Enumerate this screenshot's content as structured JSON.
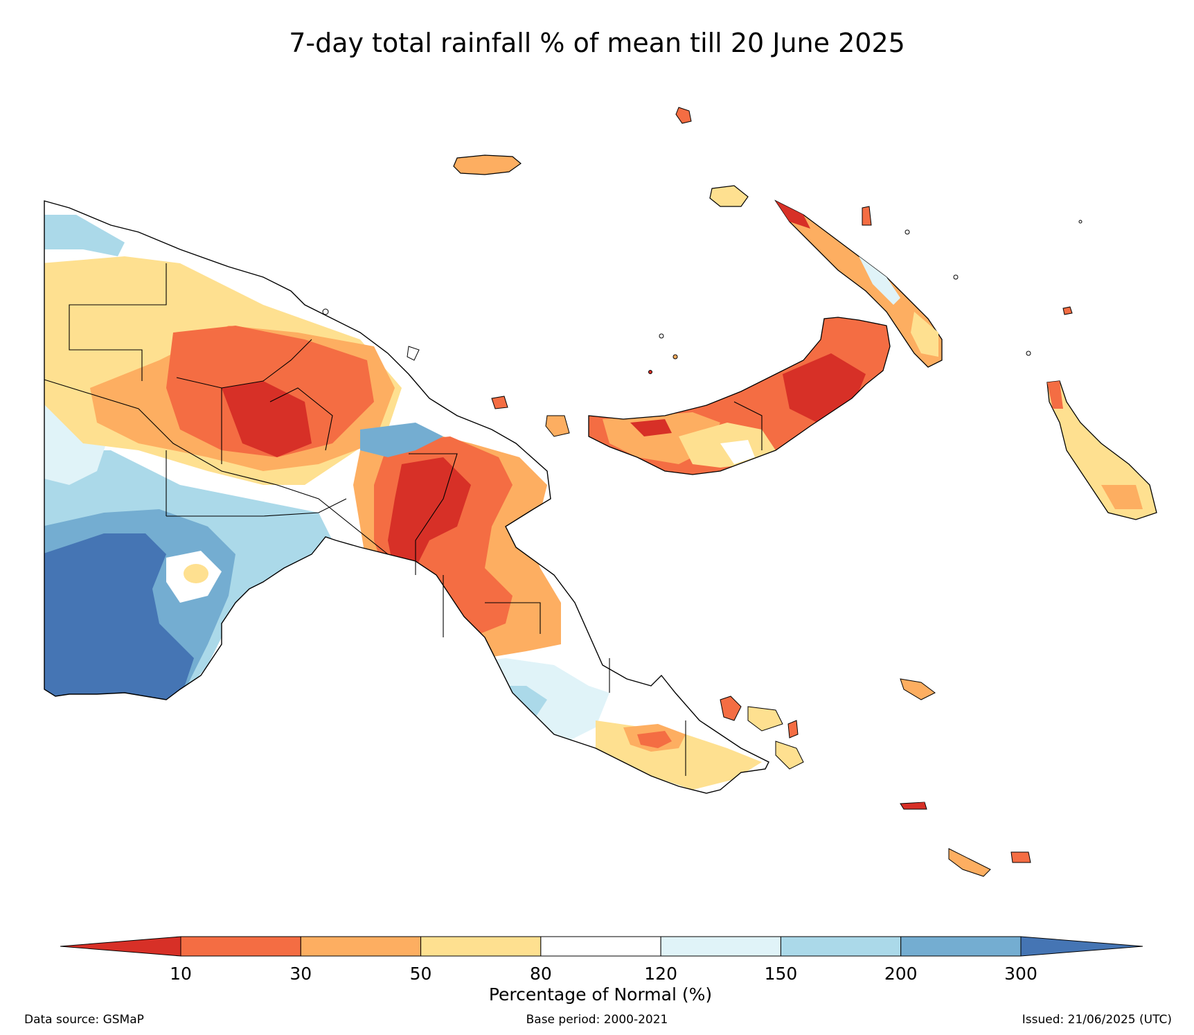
{
  "title": "7-day total rainfall % of mean till 20 June 2025",
  "colorbar": {
    "label": "Percentage of Normal (%)",
    "ticks": [
      "10",
      "30",
      "50",
      "80",
      "120",
      "150",
      "200",
      "300"
    ],
    "colors": [
      "#d73027",
      "#f46d43",
      "#fdae61",
      "#fee090",
      "#ffffff",
      "#e0f3f8",
      "#abd9e9",
      "#74add1",
      "#4575b4"
    ],
    "extend": "both"
  },
  "footer": {
    "source": "Data source: GSMaP",
    "base_period": "Base period: 2000-2021",
    "issued": "Issued: 21/06/2025 (UTC)"
  }
}
